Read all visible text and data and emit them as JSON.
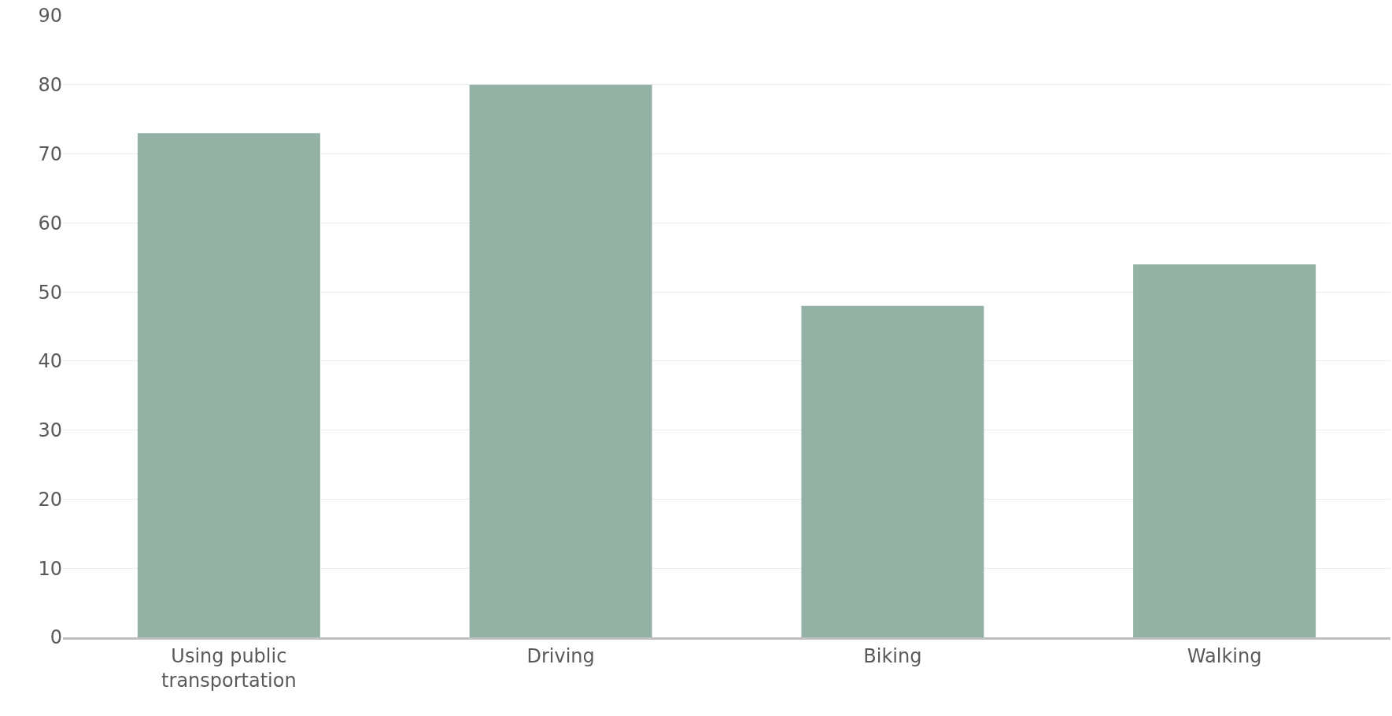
{
  "chart_data": {
    "type": "bar",
    "categories": [
      "Using public transportation",
      "Driving",
      "Biking",
      "Walking"
    ],
    "values": [
      73,
      80,
      48,
      54
    ],
    "color": "#93b1a4",
    "ylim": [
      0,
      90
    ],
    "yticks": [
      0,
      10,
      20,
      30,
      40,
      50,
      60,
      70,
      80,
      90
    ],
    "grid": "y",
    "legend": false
  }
}
